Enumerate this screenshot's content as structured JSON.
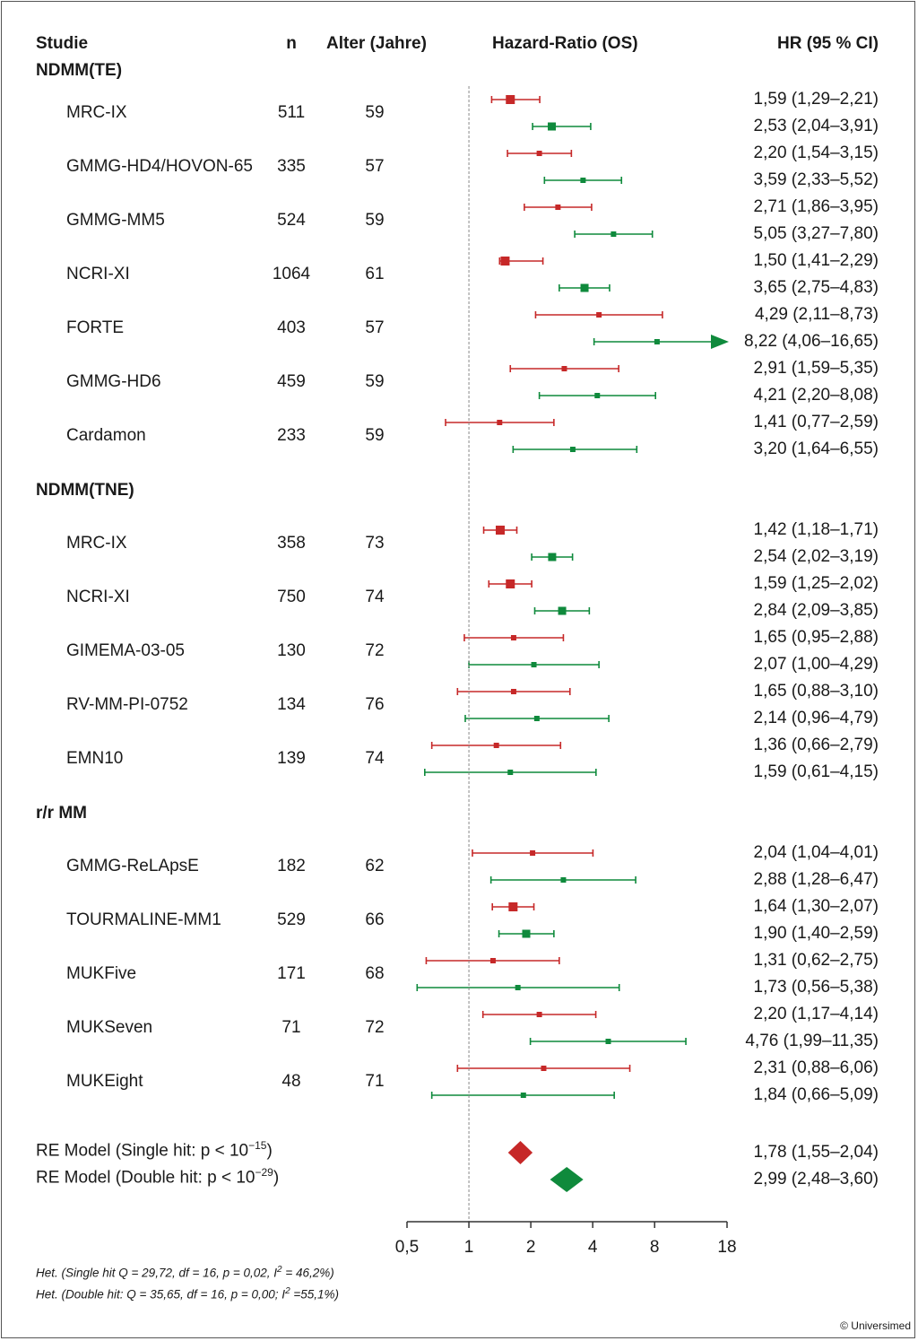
{
  "headers": {
    "study": "Studie",
    "n": "n",
    "age": "Alter (Jahre)",
    "plot": "Hazard-Ratio (OS)",
    "hr": "HR (95 % CI)"
  },
  "colors": {
    "single_hit": "#c62828",
    "double_hit": "#0f8a3c",
    "axis": "#333333",
    "reference": "#888888"
  },
  "groups": [
    {
      "label": "NDMM(TE)",
      "studies": [
        {
          "name": "MRC-IX",
          "n": "511",
          "age": "59",
          "single": {
            "hr": 1.59,
            "lo": 1.29,
            "hi": 2.21,
            "text": "1,59 (1,29–2,21)"
          },
          "double": {
            "hr": 2.53,
            "lo": 2.04,
            "hi": 3.91,
            "text": "2,53 (2,04–3,91)"
          }
        },
        {
          "name": "GMMG-HD4/HOVON-65",
          "n": "335",
          "age": "57",
          "single": {
            "hr": 2.2,
            "lo": 1.54,
            "hi": 3.15,
            "text": "2,20 (1,54–3,15)"
          },
          "double": {
            "hr": 3.59,
            "lo": 2.33,
            "hi": 5.52,
            "text": "3,59 (2,33–5,52)"
          }
        },
        {
          "name": "GMMG-MM5",
          "n": "524",
          "age": "59",
          "single": {
            "hr": 2.71,
            "lo": 1.86,
            "hi": 3.95,
            "text": "2,71 (1,86–3,95)"
          },
          "double": {
            "hr": 5.05,
            "lo": 3.27,
            "hi": 7.8,
            "text": "5,05 (3,27–7,80)"
          }
        },
        {
          "name": "NCRI-XI",
          "n": "1064",
          "age": "61",
          "single": {
            "hr": 1.5,
            "lo": 1.41,
            "hi": 2.29,
            "text": "1,50 (1,41–2,29)"
          },
          "double": {
            "hr": 3.65,
            "lo": 2.75,
            "hi": 4.83,
            "text": "3,65 (2,75–4,83)"
          }
        },
        {
          "name": "FORTE",
          "n": "403",
          "age": "57",
          "single": {
            "hr": 4.29,
            "lo": 2.11,
            "hi": 8.73,
            "text": "4,29 (2,11–8,73)"
          },
          "double": {
            "hr": 8.22,
            "lo": 4.06,
            "hi": 16.65,
            "text": "8,22 (4,06–16,65)",
            "arrow": true
          }
        },
        {
          "name": "GMMG-HD6",
          "n": "459",
          "age": "59",
          "single": {
            "hr": 2.91,
            "lo": 1.59,
            "hi": 5.35,
            "text": "2,91 (1,59–5,35)"
          },
          "double": {
            "hr": 4.21,
            "lo": 2.2,
            "hi": 8.08,
            "text": "4,21 (2,20–8,08)"
          }
        },
        {
          "name": "Cardamon",
          "n": "233",
          "age": "59",
          "single": {
            "hr": 1.41,
            "lo": 0.77,
            "hi": 2.59,
            "text": "1,41 (0,77–2,59)"
          },
          "double": {
            "hr": 3.2,
            "lo": 1.64,
            "hi": 6.55,
            "text": "3,20 (1,64–6,55)"
          }
        }
      ]
    },
    {
      "label": "NDMM(TNE)",
      "studies": [
        {
          "name": "MRC-IX",
          "n": "358",
          "age": "73",
          "single": {
            "hr": 1.42,
            "lo": 1.18,
            "hi": 1.71,
            "text": "1,42 (1,18–1,71)"
          },
          "double": {
            "hr": 2.54,
            "lo": 2.02,
            "hi": 3.19,
            "text": "2,54 (2,02–3,19)"
          }
        },
        {
          "name": "NCRI-XI",
          "n": "750",
          "age": "74",
          "single": {
            "hr": 1.59,
            "lo": 1.25,
            "hi": 2.02,
            "text": "1,59 (1,25–2,02)"
          },
          "double": {
            "hr": 2.84,
            "lo": 2.09,
            "hi": 3.85,
            "text": "2,84 (2,09–3,85)"
          }
        },
        {
          "name": "GIMEMA-03-05",
          "n": "130",
          "age": "72",
          "single": {
            "hr": 1.65,
            "lo": 0.95,
            "hi": 2.88,
            "text": "1,65 (0,95–2,88)"
          },
          "double": {
            "hr": 2.07,
            "lo": 1.0,
            "hi": 4.29,
            "text": "2,07 (1,00–4,29)"
          }
        },
        {
          "name": "RV-MM-PI-0752",
          "n": "134",
          "age": "76",
          "single": {
            "hr": 1.65,
            "lo": 0.88,
            "hi": 3.1,
            "text": "1,65 (0,88–3,10)"
          },
          "double": {
            "hr": 2.14,
            "lo": 0.96,
            "hi": 4.79,
            "text": "2,14 (0,96–4,79)"
          }
        },
        {
          "name": "EMN10",
          "n": "139",
          "age": "74",
          "single": {
            "hr": 1.36,
            "lo": 0.66,
            "hi": 2.79,
            "text": "1,36 (0,66–2,79)"
          },
          "double": {
            "hr": 1.59,
            "lo": 0.61,
            "hi": 4.15,
            "text": "1,59 (0,61–4,15)"
          }
        }
      ]
    },
    {
      "label": "r/r MM",
      "studies": [
        {
          "name": "GMMG-ReLApsE",
          "n": "182",
          "age": "62",
          "single": {
            "hr": 2.04,
            "lo": 1.04,
            "hi": 4.01,
            "text": "2,04 (1,04–4,01)"
          },
          "double": {
            "hr": 2.88,
            "lo": 1.28,
            "hi": 6.47,
            "text": "2,88 (1,28–6,47)"
          }
        },
        {
          "name": "TOURMALINE-MM1",
          "n": "529",
          "age": "66",
          "single": {
            "hr": 1.64,
            "lo": 1.3,
            "hi": 2.07,
            "text": "1,64 (1,30–2,07)"
          },
          "double": {
            "hr": 1.9,
            "lo": 1.4,
            "hi": 2.59,
            "text": "1,90 (1,40–2,59)"
          }
        },
        {
          "name": "MUKFive",
          "n": "171",
          "age": "68",
          "single": {
            "hr": 1.31,
            "lo": 0.62,
            "hi": 2.75,
            "text": "1,31 (0,62–2,75)"
          },
          "double": {
            "hr": 1.73,
            "lo": 0.56,
            "hi": 5.38,
            "text": "1,73 (0,56–5,38)"
          }
        },
        {
          "name": "MUKSeven",
          "n": "71",
          "age": "72",
          "single": {
            "hr": 2.2,
            "lo": 1.17,
            "hi": 4.14,
            "text": "2,20 (1,17–4,14)"
          },
          "double": {
            "hr": 4.76,
            "lo": 1.99,
            "hi": 11.35,
            "text": "4,76 (1,99–11,35)"
          }
        },
        {
          "name": "MUKEight",
          "n": "48",
          "age": "71",
          "single": {
            "hr": 2.31,
            "lo": 0.88,
            "hi": 6.06,
            "text": "2,31 (0,88–6,06)"
          },
          "double": {
            "hr": 1.84,
            "lo": 0.66,
            "hi": 5.09,
            "text": "1,84 (0,66–5,09)"
          }
        }
      ]
    }
  ],
  "models": [
    {
      "label_main": "RE Model (Single hit: p < 10",
      "exponent": "−15",
      "label_end": ")",
      "hr": 1.78,
      "lo": 1.55,
      "hi": 2.04,
      "text": "1,78 (1,55–2,04)",
      "series": "single"
    },
    {
      "label_main": "RE Model (Double hit: p < 10",
      "exponent": "−29",
      "label_end": ")",
      "hr": 2.99,
      "lo": 2.48,
      "hi": 3.6,
      "text": "2,99 (2,48–3,60)",
      "series": "double"
    }
  ],
  "axis": {
    "ticks": [
      0.5,
      1,
      2,
      4,
      8,
      18
    ],
    "tick_labels": [
      "0,5",
      "1",
      "2",
      "4",
      "8",
      "18"
    ],
    "scale": "log",
    "range": [
      0.5,
      18
    ],
    "reference": 1
  },
  "heterogeneity": [
    {
      "main": "Het. (Single hit Q = 29,72, df = 16, p = 0,02, I",
      "sup": "2",
      "rest": " = 46,2%)"
    },
    {
      "main": "Het. (Double hit: Q = 35,65, df = 16, p = 0,00; I",
      "sup": "2",
      "rest": " =55,1%)"
    }
  ],
  "copyright": "© Universimed",
  "chart_data": {
    "type": "scatter",
    "title": "Hazard-Ratio (OS)",
    "xlabel": "",
    "ylabel": "",
    "xscale": "log",
    "xlim": [
      0.5,
      18
    ],
    "legend": "none",
    "series": [
      {
        "name": "",
        "color": "#c62828",
        "studies": [
          "MRC-IX (TE)",
          "GMMG-HD4/HOVON-65",
          "GMMG-MM5",
          "NCRI-XI (TE)",
          "FORTE",
          "GMMG-HD6",
          "Cardamon",
          "MRC-IX (TNE)",
          "NCRI-XI (TNE)",
          "GIMEMA-03-05",
          "RV-MM-PI-0752",
          "EMN10",
          "GMMG-ReLApsE",
          "TOURMALINE-MM1",
          "MUKFive",
          "MUKSeven",
          "MUKEight"
        ],
        "hr": [
          1.59,
          2.2,
          2.71,
          1.5,
          4.29,
          2.91,
          1.41,
          1.42,
          1.59,
          1.65,
          1.65,
          1.36,
          2.04,
          1.64,
          1.31,
          2.2,
          2.31
        ],
        "pooled": 1.78
      },
      {
        "name": "",
        "color": "#0f8a3c",
        "studies": [
          "MRC-IX (TE)",
          "GMMG-HD4/HOVON-65",
          "GMMG-MM5",
          "NCRI-XI (TE)",
          "FORTE",
          "GMMG-HD6",
          "Cardamon",
          "MRC-IX (TNE)",
          "NCRI-XI (TNE)",
          "GIMEMA-03-05",
          "RV-MM-PI-0752",
          "EMN10",
          "GMMG-ReLApsE",
          "TOURMALINE-MM1",
          "MUKFive",
          "MUKSeven",
          "MUKEight"
        ],
        "hr": [
          2.53,
          3.59,
          5.05,
          3.65,
          8.22,
          4.21,
          3.2,
          2.54,
          2.84,
          2.07,
          2.14,
          1.59,
          2.88,
          1.9,
          1.73,
          4.76,
          1.84
        ],
        "pooled": 2.99
      }
    ]
  }
}
